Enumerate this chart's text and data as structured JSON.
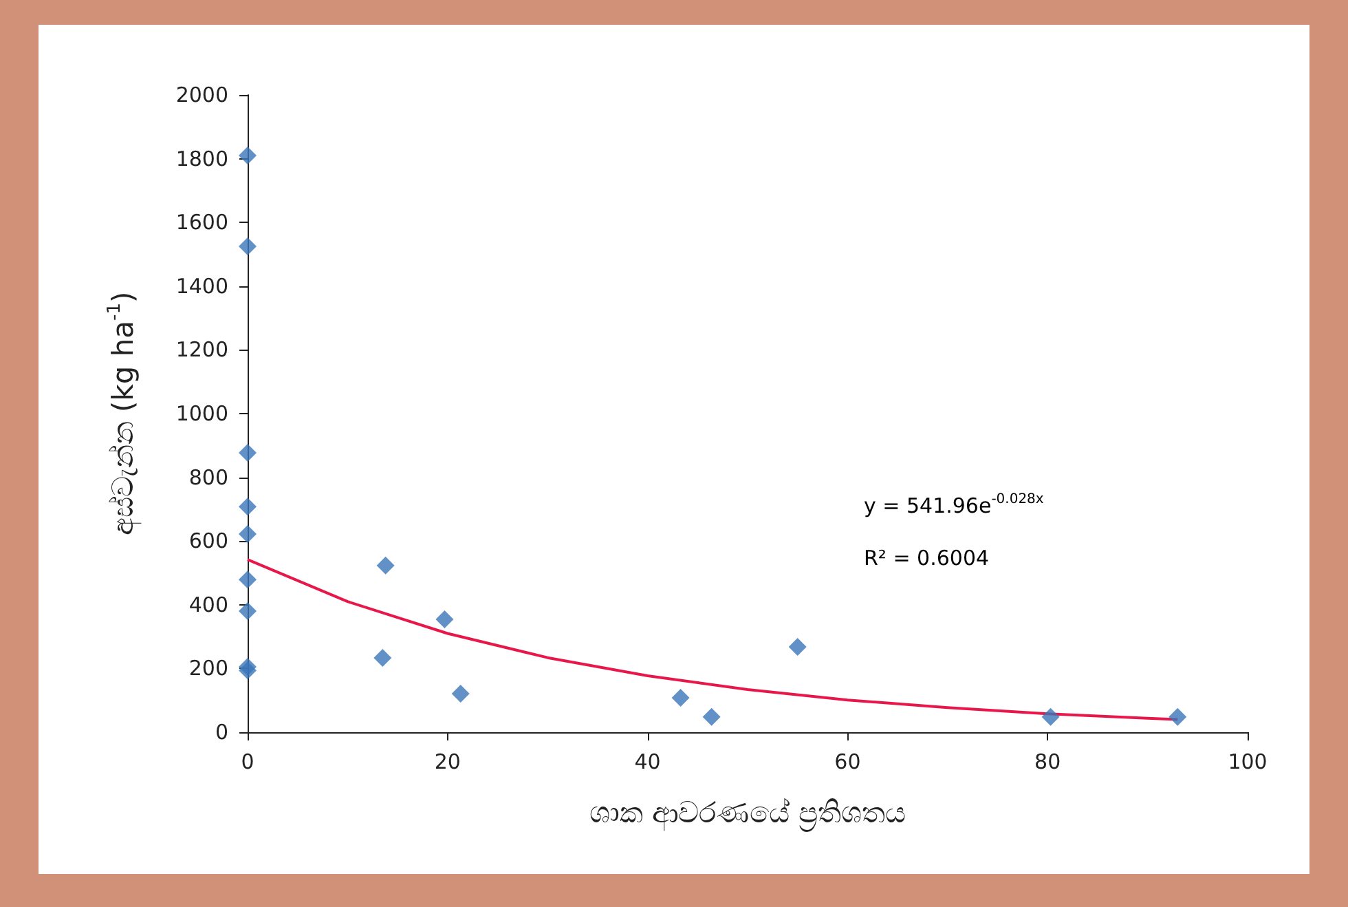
{
  "chart_data": {
    "type": "scatter",
    "xlabel": "ශාක ආවරණයේ ප්‍රතිශතය",
    "ylabel": "අස්වැන්න (kg ha$^{-1}$)",
    "x": [
      0,
      0,
      0,
      0,
      0,
      0,
      0,
      0,
      0,
      13.8,
      13.5,
      19.7,
      21.3,
      43.3,
      46.4,
      55,
      80.3,
      93
    ],
    "series": [
      {
        "color": "#3a75b8",
        "values": [
          1810,
          1525,
          877,
          708,
          622,
          479,
          380,
          194,
          205,
          523,
          233,
          354,
          121,
          108,
          48,
          268,
          48,
          48
        ]
      },
      {
        "type": "line",
        "color": "#e8174a",
        "marker": "none",
        "x": [
          0,
          10,
          20,
          30,
          40,
          50,
          60,
          70,
          80,
          90,
          93
        ],
        "values": [
          542,
          410,
          310,
          234,
          177,
          134,
          101,
          77,
          58,
          44,
          40
        ]
      }
    ],
    "annotations": [
      "y = 541.96e$^{-0.028x}$",
      "R² = 0.6004"
    ],
    "xlim": [
      0,
      100
    ],
    "xticks": [
      0,
      20,
      40,
      60,
      80,
      100
    ],
    "ylim": [
      0,
      2000
    ],
    "yticks": [
      0,
      200,
      400,
      600,
      800,
      1000,
      1200,
      1400,
      1600,
      1800,
      2000
    ],
    "grid": false,
    "marker": "diamond"
  }
}
